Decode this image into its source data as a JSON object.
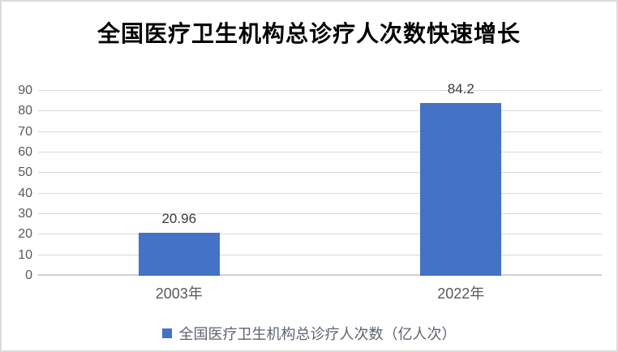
{
  "frame": {
    "background": "#ffffff",
    "border_color": "#dcdcdc"
  },
  "chart_data": {
    "type": "bar",
    "title": "全国医疗卫生机构总诊疗人次数快速增长",
    "categories": [
      "2003年",
      "2022年"
    ],
    "values": [
      20.96,
      84.2
    ],
    "data_labels": [
      "20.96",
      "84.2"
    ],
    "series_name": "全国医疗卫生机构总诊疗人次数（亿人次）",
    "xlabel": "",
    "ylabel": "",
    "ylim": [
      0,
      90
    ],
    "yticks": [
      0,
      10,
      20,
      30,
      40,
      50,
      60,
      70,
      80,
      90
    ],
    "grid": true,
    "legend_position": "bottom",
    "colors": {
      "bar": "#4472c4",
      "gridline": "#d9d9d9",
      "axis_line": "#cfcfcf",
      "tick_label": "#595959",
      "data_label": "#3b3b3b",
      "title": "#000000",
      "legend_text": "#5d6470"
    }
  }
}
